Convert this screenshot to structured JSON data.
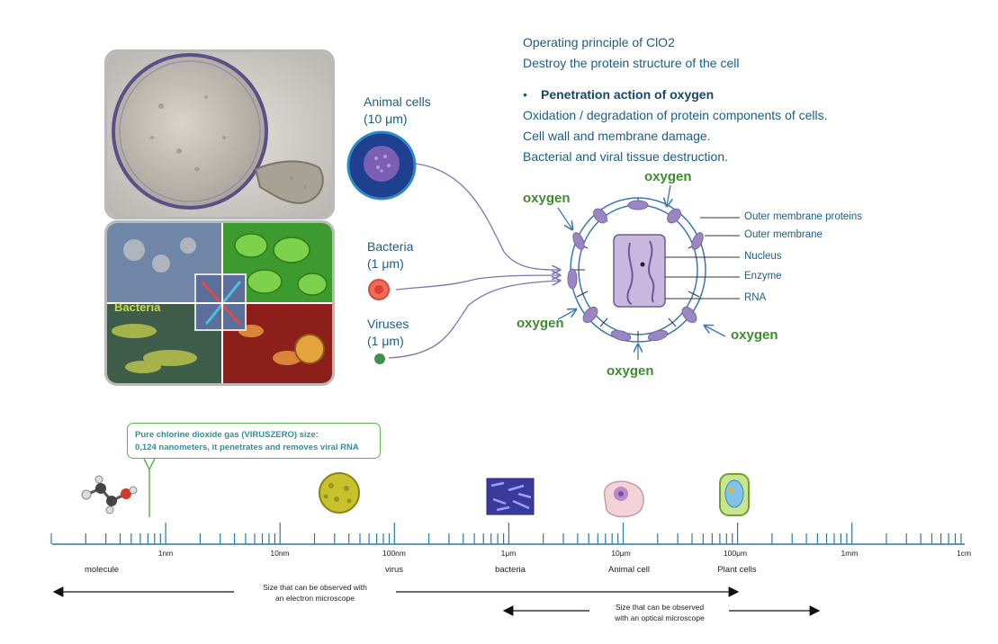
{
  "header": {
    "line1": "Operating principle of ClO2",
    "line2": "Destroy the protein structure of the cell",
    "bullet_title": "Penetration action of oxygen",
    "line3": "Oxidation / degradation of protein components of cells.",
    "line4": "Cell wall and membrane damage.",
    "line5": "Bacterial and viral tissue destruction."
  },
  "cells": {
    "animal": {
      "name": "Animal cells",
      "size": "(10 μm)"
    },
    "bacteria": {
      "name": "Bacteria",
      "size": "(1 μm)"
    },
    "viruses": {
      "name": "Viruses",
      "size": "(1 μm)"
    }
  },
  "photo": {
    "bacteria_caption": "Bacteria"
  },
  "virus_diagram": {
    "oxygen_label": "oxygen",
    "parts": {
      "outer_membrane_proteins": "Outer membrane proteins",
      "outer_membrane": "Outer membrane",
      "nucleus": "Nucleus",
      "enzyme": "Enzyme",
      "rna": "RNA"
    }
  },
  "callout": {
    "line1": "Pure chlorine dioxide gas (VIRUSZERO) size:",
    "line2": "0,124 nanometers, it penetrates and removes viral RNA"
  },
  "scale": {
    "ticks": [
      "1nm",
      "10nm",
      "100nm",
      "1μm",
      "10μm",
      "100μm",
      "1mm",
      "1cm"
    ],
    "objects": [
      "molecule",
      "virus",
      "bacteria",
      "Animal cell",
      "Plant cells"
    ],
    "electron_range": {
      "line1": "Size that can be observed with",
      "line2": "an electron microscope"
    },
    "optical_range": {
      "line1": "Size that can be observed",
      "line2": "with an optical microscope"
    }
  },
  "colors": {
    "blue_text": "#1b5d86",
    "oxygen_green": "#3e8c2f",
    "membrane_purple": "#9a86c0",
    "scale_blue": "#2a7aa8"
  }
}
